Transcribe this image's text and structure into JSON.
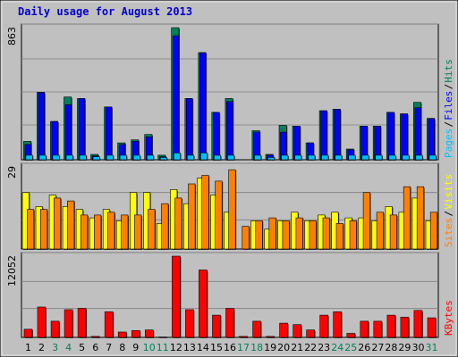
{
  "chart_data": {
    "title": "Daily usage for August 2013",
    "type": "bar",
    "categories": [
      "1",
      "2",
      "3",
      "4",
      "5",
      "6",
      "7",
      "8",
      "9",
      "10",
      "11",
      "12",
      "13",
      "14",
      "15",
      "16",
      "17",
      "18",
      "19",
      "20",
      "21",
      "22",
      "23",
      "24",
      "25",
      "26",
      "27",
      "28",
      "29",
      "30",
      "31"
    ],
    "weekend_days": [
      "3",
      "4",
      "10",
      "11",
      "17",
      "18",
      "24",
      "25",
      "31"
    ],
    "colors": {
      "hits": "#00805c",
      "files": "#0000ff",
      "pages": "#00c0ff",
      "visits": "#ffff00",
      "sites": "#ff8000",
      "kbytes": "#ff0000",
      "weekday_label": "#000000",
      "weekend_label": "#00805c",
      "panel_bg": "#c0c0c0"
    },
    "panels": [
      {
        "id": "hits-files-pages",
        "ymax_label": "863",
        "ylim": [
          0,
          863
        ],
        "legend": [
          {
            "key": "pages",
            "text": "Pages"
          },
          {
            "key": "sep",
            "text": "/"
          },
          {
            "key": "files",
            "text": "Files"
          },
          {
            "key": "sep",
            "text": "/"
          },
          {
            "key": "hits",
            "text": "Hits"
          }
        ],
        "series": [
          {
            "key": "hits",
            "values": [
              120,
              440,
              250,
              410,
              400,
              35,
              345,
              110,
              130,
              165,
              30,
              863,
              400,
              700,
              310,
              400,
              0,
              190,
              35,
              225,
              220,
              110,
              320,
              330,
              70,
              220,
              220,
              310,
              300,
              375,
              270
            ]
          },
          {
            "key": "files",
            "values": [
              100,
              440,
              250,
              360,
              400,
              25,
              345,
              100,
              120,
              150,
              20,
              810,
              400,
              700,
              310,
              380,
              0,
              180,
              30,
              180,
              220,
              110,
              320,
              330,
              65,
              220,
              220,
              310,
              300,
              340,
              270
            ]
          },
          {
            "key": "pages",
            "values": [
              30,
              30,
              30,
              30,
              30,
              20,
              30,
              30,
              30,
              30,
              15,
              45,
              30,
              45,
              30,
              30,
              0,
              30,
              15,
              30,
              30,
              30,
              30,
              30,
              30,
              30,
              30,
              30,
              30,
              30,
              30
            ]
          }
        ]
      },
      {
        "id": "visits-sites",
        "ymax_label": "29",
        "ylim": [
          0,
          29
        ],
        "legend": [
          {
            "key": "sites",
            "text": "Sites"
          },
          {
            "key": "sep",
            "text": "/"
          },
          {
            "key": "visits",
            "text": "Visits"
          }
        ],
        "series": [
          {
            "key": "visits",
            "values": [
              20,
              15,
              19,
              15,
              14,
              11,
              14,
              10,
              20,
              20,
              9,
              21,
              16,
              25,
              19,
              13,
              0,
              10,
              7,
              10,
              13,
              10,
              12,
              13,
              11,
              11,
              10,
              15,
              13,
              18,
              10
            ]
          },
          {
            "key": "sites",
            "values": [
              14,
              14,
              18,
              17,
              12,
              12,
              13,
              12,
              12,
              14,
              16,
              18,
              23,
              26,
              24,
              28,
              8,
              10,
              11,
              10,
              11,
              10,
              11,
              9,
              10,
              20,
              13,
              12,
              22,
              22,
              13
            ]
          }
        ]
      },
      {
        "id": "kbytes",
        "ymax_label": "12052",
        "ylim": [
          0,
          12052
        ],
        "legend": [
          {
            "key": "kbytes",
            "text": "KBytes"
          }
        ],
        "series": [
          {
            "key": "kbytes",
            "values": [
              1200,
              4500,
              2400,
              4100,
              4300,
              150,
              3800,
              800,
              1000,
              1100,
              50,
              12052,
              4100,
              10000,
              3300,
              4300,
              150,
              2400,
              150,
              2100,
              1900,
              1100,
              3300,
              3800,
              600,
              2400,
              2400,
              3300,
              3000,
              4000,
              2900
            ]
          }
        ]
      }
    ]
  }
}
